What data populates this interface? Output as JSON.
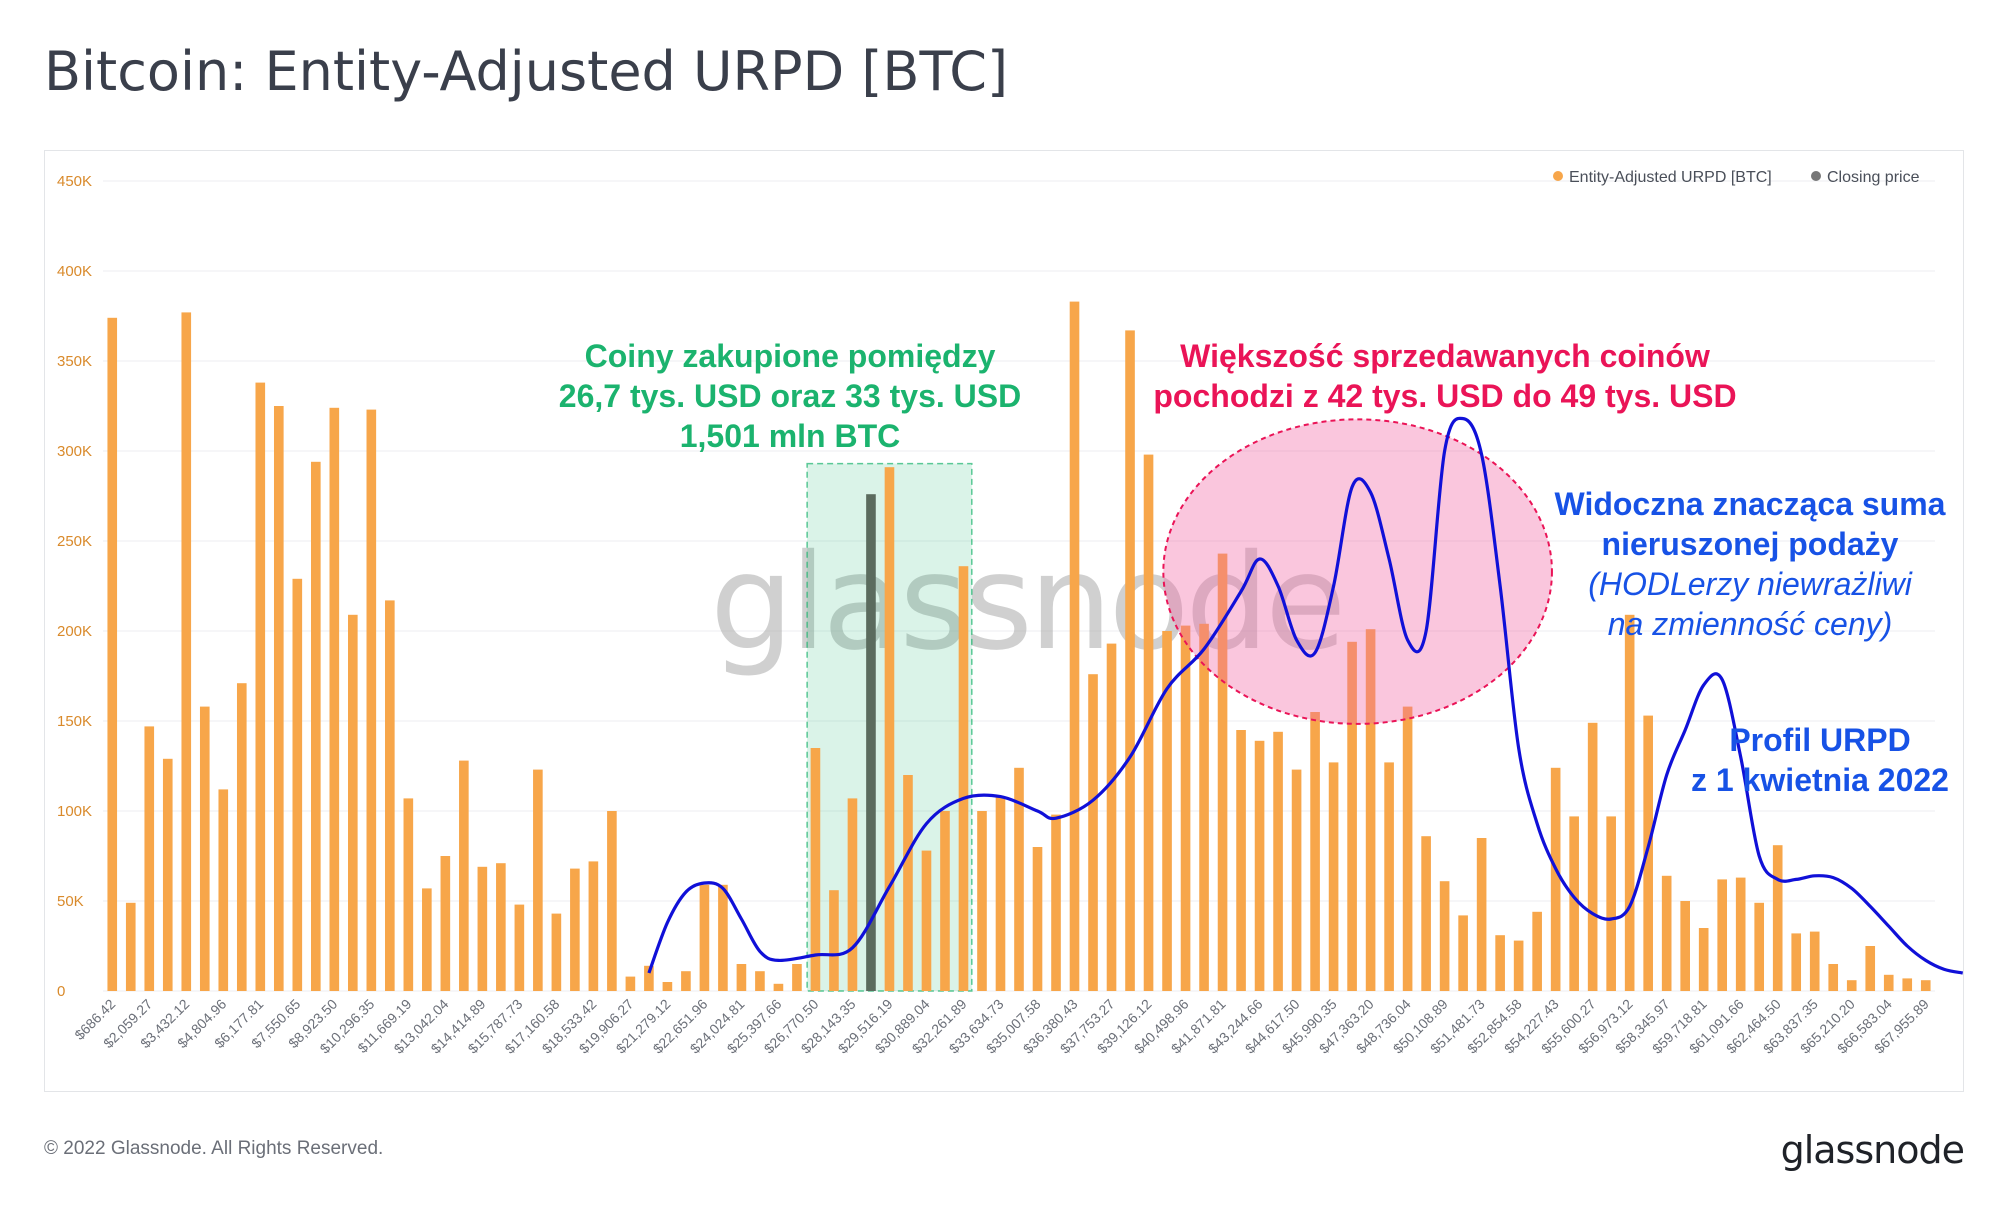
{
  "title": "Bitcoin: Entity-Adjusted URPD [BTC]",
  "footer": {
    "copyright": "© 2022 Glassnode. All Rights Reserved.",
    "logo": "glassnode"
  },
  "watermark": "glassnode",
  "colors": {
    "bar": "#f7a64a",
    "bar_highlight": "#5b6b5e",
    "closing_price": "#777777",
    "curve": "#1010d8",
    "green_zone": "#1bb36e",
    "red_zone": "#ea1457",
    "axis_text": "#d98a2b"
  },
  "annotations": {
    "green": [
      "Coiny zakupione pomiędzy",
      "26,7 tys. USD oraz 33 tys. USD",
      "1,501 mln BTC"
    ],
    "red": [
      "Większość sprzedawanych coinów",
      "pochodzi z 42 tys. USD do 49 tys. USD"
    ],
    "blue": [
      "Widoczna znacząca suma",
      "nieruszonej podaży",
      "(HODLerzy niewrażliwi",
      "na zmienność ceny)"
    ],
    "profile": [
      "Profil URPD",
      "z 1 kwietnia 2022"
    ]
  },
  "chart_data": {
    "type": "bar",
    "title": "Bitcoin: Entity-Adjusted URPD [BTC]",
    "ylim": [
      0,
      450000
    ],
    "yticks": [
      {
        "value": 0,
        "label": "0"
      },
      {
        "value": 50000,
        "label": "50K"
      },
      {
        "value": 100000,
        "label": "100K"
      },
      {
        "value": 150000,
        "label": "150K"
      },
      {
        "value": 200000,
        "label": "200K"
      },
      {
        "value": 250000,
        "label": "250K"
      },
      {
        "value": 300000,
        "label": "300K"
      },
      {
        "value": 350000,
        "label": "350K"
      },
      {
        "value": 400000,
        "label": "400K"
      },
      {
        "value": 450000,
        "label": "450K"
      }
    ],
    "grid": true,
    "legend_position": "top-right",
    "legend": [
      "Entity-Adjusted URPD [BTC]",
      "Closing price"
    ],
    "bucket_start": 686.42,
    "bucket_width": 686.42,
    "tick_every": 2,
    "tick_labels": [
      "$686.42",
      "$2,059.27",
      "$3,432.12",
      "$4,804.96",
      "$6,177.81",
      "$7,550.65",
      "$8,923.50",
      "$10,296.35",
      "$11,669.19",
      "$13,042.04",
      "$14,414.89",
      "$15,787.73",
      "$17,160.58",
      "$18,533.42",
      "$19,906.27",
      "$21,279.12",
      "$22,651.96",
      "$24,024.81",
      "$25,397.66",
      "$26,770.50",
      "$28,143.35",
      "$29,516.19",
      "$30,889.04",
      "$32,261.89",
      "$33,634.73",
      "$35,007.58",
      "$36,380.43",
      "$37,753.27",
      "$39,126.12",
      "$40,498.96",
      "$41,871.81",
      "$43,244.66",
      "$44,617.50",
      "$45,990.35",
      "$47,363.20",
      "$48,736.04",
      "$50,108.89",
      "$51,481.73",
      "$52,854.58",
      "$54,227.43",
      "$55,600.27",
      "$56,973.12",
      "$58,345.97",
      "$59,718.81",
      "$61,091.66",
      "$62,464.50",
      "$63,837.35",
      "$65,210.20",
      "$66,583.04",
      "$67,955.89"
    ],
    "values": [
      374000,
      49000,
      147000,
      129000,
      377000,
      158000,
      112000,
      171000,
      338000,
      325000,
      229000,
      294000,
      324000,
      209000,
      323000,
      217000,
      107000,
      57000,
      75000,
      128000,
      69000,
      71000,
      48000,
      123000,
      43000,
      68000,
      72000,
      100000,
      8000,
      14000,
      5000,
      11000,
      59000,
      59000,
      15000,
      11000,
      4000,
      15000,
      135000,
      56000,
      107000,
      276000,
      291000,
      120000,
      78000,
      100000,
      236000,
      100000,
      108000,
      124000,
      80000,
      98000,
      383000,
      176000,
      193000,
      367000,
      298000,
      200000,
      203000,
      204000,
      243000,
      145000,
      139000,
      144000,
      123000,
      155000,
      127000,
      194000,
      201000,
      127000,
      158000,
      86000,
      61000,
      42000,
      85000,
      31000,
      28000,
      44000,
      124000,
      97000,
      149000,
      97000,
      209000,
      153000,
      64000,
      50000,
      35000,
      62000,
      63000,
      49000,
      81000,
      32000,
      33000,
      15000,
      6000,
      25000,
      9000,
      7000,
      6000
    ],
    "closing_price_index": 41,
    "green_zone_index_range": [
      38,
      46
    ],
    "curve_points": [
      [
        29,
        10000
      ],
      [
        30,
        38000
      ],
      [
        31,
        55000
      ],
      [
        32,
        60000
      ],
      [
        33,
        57000
      ],
      [
        34,
        40000
      ],
      [
        35,
        22000
      ],
      [
        36,
        17000
      ],
      [
        38,
        20000
      ],
      [
        40,
        24000
      ],
      [
        42,
        58000
      ],
      [
        44,
        93000
      ],
      [
        46,
        107000
      ],
      [
        48,
        108000
      ],
      [
        50,
        100000
      ],
      [
        51,
        96000
      ],
      [
        53,
        106000
      ],
      [
        55,
        130000
      ],
      [
        57,
        168000
      ],
      [
        59,
        190000
      ],
      [
        61,
        222000
      ],
      [
        62,
        240000
      ],
      [
        63,
        225000
      ],
      [
        64,
        195000
      ],
      [
        65,
        188000
      ],
      [
        66,
        225000
      ],
      [
        67,
        280000
      ],
      [
        68,
        277000
      ],
      [
        69,
        240000
      ],
      [
        70,
        195000
      ],
      [
        71,
        200000
      ],
      [
        72,
        300000
      ],
      [
        73,
        318000
      ],
      [
        74,
        298000
      ],
      [
        75,
        225000
      ],
      [
        76,
        135000
      ],
      [
        77,
        93000
      ],
      [
        78,
        68000
      ],
      [
        79,
        52000
      ],
      [
        80,
        43000
      ],
      [
        81,
        40000
      ],
      [
        82,
        47000
      ],
      [
        83,
        80000
      ],
      [
        84,
        120000
      ],
      [
        85,
        145000
      ],
      [
        86,
        170000
      ],
      [
        87,
        173000
      ],
      [
        88,
        130000
      ],
      [
        89,
        75000
      ],
      [
        90,
        62000
      ],
      [
        91,
        62000
      ],
      [
        92,
        64000
      ],
      [
        93,
        63000
      ],
      [
        94,
        57000
      ],
      [
        95,
        47000
      ],
      [
        96,
        36000
      ],
      [
        97,
        25000
      ],
      [
        98,
        17000
      ],
      [
        99,
        12000
      ],
      [
        100,
        10000
      ]
    ]
  }
}
